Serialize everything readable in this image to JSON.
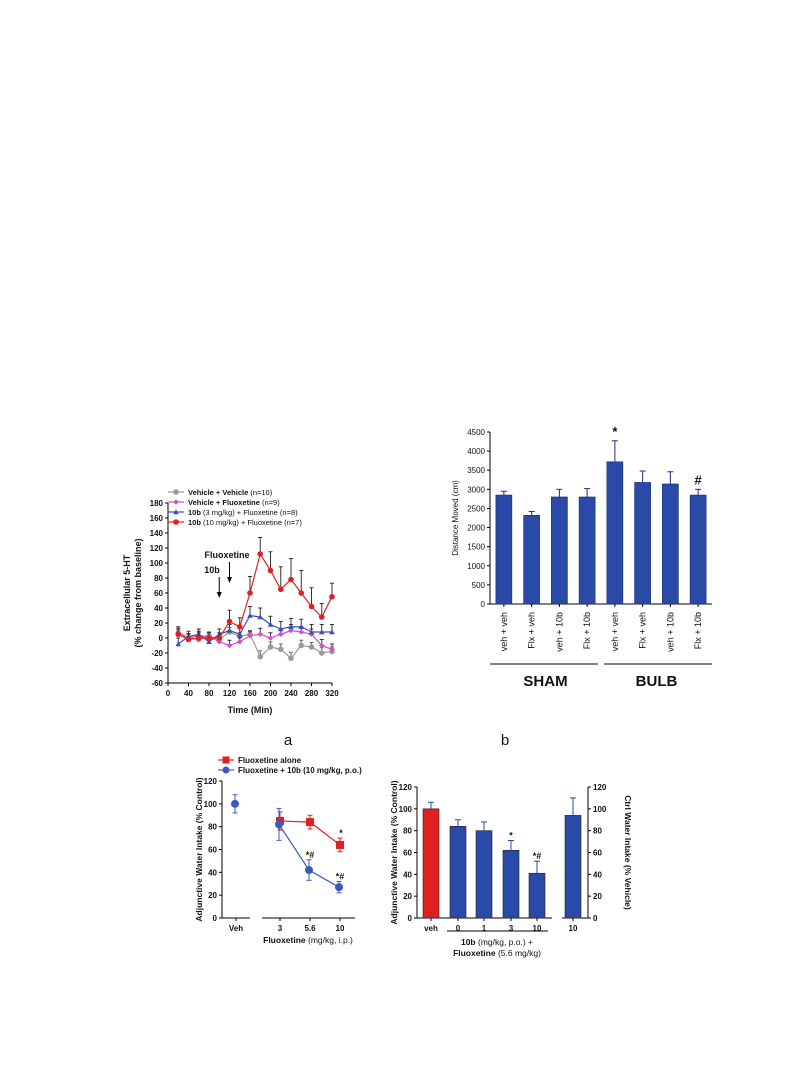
{
  "panel_labels": {
    "a": "a",
    "b": "b"
  },
  "chart_data": [
    {
      "id": "microdialysis",
      "type": "line",
      "ylabel": "Extracellular 5-HT",
      "ylabel2": "(% change from baseline)",
      "xlabel": "Time (Min)",
      "ylim": [
        -60,
        180
      ],
      "xlim": [
        0,
        320
      ],
      "yticks": [
        -60,
        -40,
        -20,
        0,
        20,
        40,
        60,
        80,
        100,
        120,
        140,
        160,
        180
      ],
      "xticks": [
        0,
        40,
        80,
        120,
        160,
        200,
        240,
        280,
        320
      ],
      "annotations": [
        {
          "text": "Fluoxetine",
          "x": 120
        },
        {
          "text": "10b",
          "x": 100
        }
      ],
      "x": [
        20,
        40,
        60,
        80,
        100,
        120,
        140,
        160,
        180,
        200,
        220,
        240,
        260,
        280,
        300,
        320
      ],
      "series": [
        {
          "name_bold": "Vehicle + Vehicle",
          "name_rest": " (n=10)",
          "color": "#9a9a9a",
          "marker": "circle",
          "values": [
            5,
            0,
            -2,
            3,
            -2,
            8,
            2,
            5,
            -25,
            -12,
            -15,
            -27,
            -10,
            -12,
            -20,
            -18
          ],
          "errors": [
            6,
            5,
            5,
            5,
            5,
            6,
            5,
            5,
            8,
            7,
            7,
            8,
            7,
            6,
            7,
            6
          ]
        },
        {
          "name_bold": "Vehicle + Fluoxetine",
          "name_rest": " (n=9)",
          "color": "#d050c8",
          "marker": "diamond",
          "values": [
            8,
            0,
            3,
            2,
            -5,
            -10,
            -5,
            3,
            5,
            0,
            5,
            10,
            8,
            5,
            -10,
            -15
          ],
          "errors": [
            7,
            6,
            6,
            6,
            6,
            7,
            6,
            6,
            8,
            7,
            7,
            8,
            7,
            7,
            8,
            7
          ]
        },
        {
          "name_bold": "10b",
          "name_rest": " (3 mg/kg) + Fluoxetine (n=8)",
          "color": "#3a4fb5",
          "marker": "triangle",
          "values": [
            -8,
            2,
            5,
            -5,
            5,
            10,
            5,
            30,
            28,
            18,
            12,
            15,
            15,
            8,
            8,
            8
          ],
          "errors": [
            8,
            7,
            7,
            7,
            7,
            8,
            8,
            12,
            12,
            11,
            10,
            11,
            10,
            10,
            10,
            10
          ]
        },
        {
          "name_bold": "10b",
          "name_rest": " (10 mg/kg) + Fluoxetine (n=7)",
          "color": "#e02020",
          "marker": "circle",
          "values": [
            5,
            -2,
            0,
            0,
            0,
            22,
            15,
            60,
            112,
            90,
            65,
            78,
            60,
            42,
            28,
            55
          ],
          "errors": [
            8,
            7,
            7,
            7,
            7,
            15,
            12,
            22,
            22,
            25,
            30,
            28,
            30,
            25,
            18,
            18
          ]
        }
      ]
    },
    {
      "id": "distance",
      "type": "bar",
      "ylabel": "Distance Moved (cm)",
      "ylim": [
        0,
        4500
      ],
      "yticks": [
        0,
        500,
        1000,
        1500,
        2000,
        2500,
        3000,
        3500,
        4000,
        4500
      ],
      "categories": [
        "veh + veh",
        "Flx + veh",
        "veh + 10b",
        "Flx + 10b",
        "veh + veh",
        "Flx + veh",
        "veh + 10b",
        "Flx + 10b"
      ],
      "values": [
        2850,
        2320,
        2800,
        2800,
        3720,
        3180,
        3140,
        2850
      ],
      "errors": [
        100,
        100,
        200,
        220,
        550,
        300,
        320,
        150
      ],
      "marks": [
        "",
        "",
        "",
        "",
        "*",
        "",
        "",
        "#"
      ],
      "groups": [
        "SHAM",
        "BULB"
      ],
      "color": "#2a4aa8"
    },
    {
      "id": "sip_a",
      "type": "line",
      "ylabel": "Adjunctive Water Intake (% Control)",
      "xlabel": "Fluoxetine",
      "xlabel_rest": " (mg/kg, i.p.)",
      "ylim": [
        0,
        120
      ],
      "yticks": [
        0,
        20,
        40,
        60,
        80,
        100,
        120
      ],
      "categories": [
        "Veh",
        "3",
        "5.6",
        "10"
      ],
      "series": [
        {
          "name": "Fluoxetine alone",
          "color": "#e02020",
          "marker": "square",
          "values": [
            null,
            85,
            84,
            64
          ],
          "errors": [
            null,
            8,
            6,
            6
          ],
          "marks": [
            "",
            "",
            "",
            "*"
          ]
        },
        {
          "name": "Fluoxetine + 10b (10 mg/kg, p.o.)",
          "color": "#3a5ac0",
          "marker": "circle",
          "values": [
            100,
            82,
            42,
            27
          ],
          "errors": [
            8,
            14,
            9,
            5
          ],
          "marks": [
            "",
            "",
            "*#",
            "*#"
          ]
        }
      ]
    },
    {
      "id": "sip_b",
      "type": "bar",
      "ylabel": "Adjunctive Water Intake (% Control)",
      "ylabel_right": "Ctrl Water Intake (% Vehicle)",
      "ylim": [
        0,
        120
      ],
      "yticks": [
        0,
        20,
        40,
        60,
        80,
        100,
        120
      ],
      "categories": [
        "veh",
        "0",
        "1",
        "3",
        "10",
        "10"
      ],
      "values": [
        100,
        84,
        80,
        62,
        41,
        94
      ],
      "errors": [
        6,
        6,
        8,
        9,
        11,
        16
      ],
      "marks": [
        "",
        "",
        "",
        "*",
        "*#",
        ""
      ],
      "colors": [
        "#e02020",
        "#2a4aa8",
        "#2a4aa8",
        "#2a4aa8",
        "#2a4aa8",
        "#2a4aa8"
      ],
      "xlabel_line1_bold": "10b",
      "xlabel_line1_rest": " (mg/kg, p.o.) +",
      "xlabel_line2_bold": "Fluoxetine",
      "xlabel_line2_rest": " (5.6 mg/kg)"
    }
  ]
}
